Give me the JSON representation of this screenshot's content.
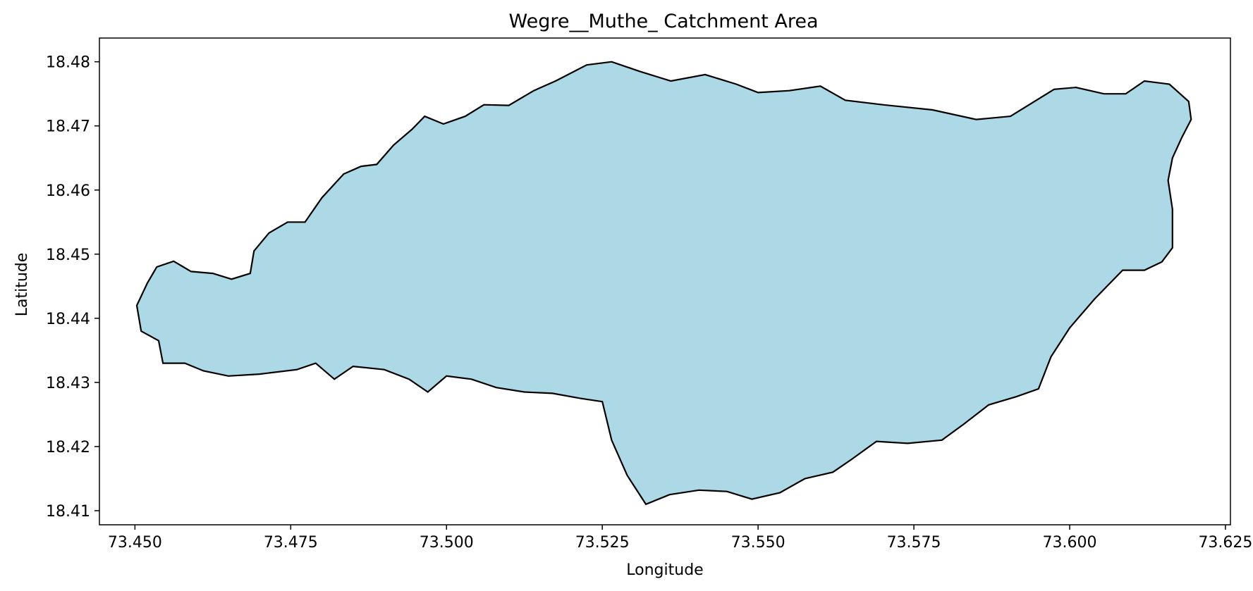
{
  "chart_data": {
    "type": "map-polygon",
    "title": "Wegre__Muthe_ Catchment Area",
    "xlabel": "Longitude",
    "ylabel": "Latitude",
    "xlim": [
      73.4443,
      73.6258
    ],
    "ylim": [
      18.4078,
      18.4837
    ],
    "xticks": [
      "73.450",
      "73.475",
      "73.500",
      "73.525",
      "73.550",
      "73.575",
      "73.600",
      "73.625"
    ],
    "yticks": [
      "18.41",
      "18.42",
      "18.43",
      "18.44",
      "18.45",
      "18.46",
      "18.47",
      "18.48"
    ],
    "fill_color": "#add8e6",
    "edge_color": "#000000",
    "boundary_lon_lat": [
      [
        73.4562,
        18.4489
      ],
      [
        73.459,
        18.4473
      ],
      [
        73.4625,
        18.447
      ],
      [
        73.4655,
        18.4461
      ],
      [
        73.4685,
        18.447
      ],
      [
        73.4691,
        18.4505
      ],
      [
        73.4715,
        18.4533
      ],
      [
        73.4745,
        18.455
      ],
      [
        73.4773,
        18.455
      ],
      [
        73.48,
        18.4588
      ],
      [
        73.4835,
        18.4625
      ],
      [
        73.4863,
        18.4637
      ],
      [
        73.4888,
        18.464
      ],
      [
        73.4915,
        18.467
      ],
      [
        73.4945,
        18.4695
      ],
      [
        73.4965,
        18.4715
      ],
      [
        73.4995,
        18.4703
      ],
      [
        73.503,
        18.4715
      ],
      [
        73.506,
        18.4733
      ],
      [
        73.51,
        18.4732
      ],
      [
        73.514,
        18.4755
      ],
      [
        73.5175,
        18.477
      ],
      [
        73.5225,
        18.4795
      ],
      [
        73.5265,
        18.48
      ],
      [
        73.531,
        18.4785
      ],
      [
        73.536,
        18.477
      ],
      [
        73.5415,
        18.478
      ],
      [
        73.5465,
        18.4765
      ],
      [
        73.55,
        18.4752
      ],
      [
        73.555,
        18.4755
      ],
      [
        73.56,
        18.4762
      ],
      [
        73.564,
        18.474
      ],
      [
        73.57,
        18.4733
      ],
      [
        73.578,
        18.4725
      ],
      [
        73.585,
        18.471
      ],
      [
        73.5905,
        18.4715
      ],
      [
        73.5935,
        18.4733
      ],
      [
        73.5975,
        18.4757
      ],
      [
        73.601,
        18.476
      ],
      [
        73.6055,
        18.475
      ],
      [
        73.609,
        18.475
      ],
      [
        73.612,
        18.477
      ],
      [
        73.616,
        18.4765
      ],
      [
        73.6191,
        18.4738
      ],
      [
        73.6195,
        18.471
      ],
      [
        73.618,
        18.4682
      ],
      [
        73.6165,
        18.465
      ],
      [
        73.6158,
        18.4615
      ],
      [
        73.6165,
        18.457
      ],
      [
        73.6165,
        18.451
      ],
      [
        73.6148,
        18.4488
      ],
      [
        73.612,
        18.4475
      ],
      [
        73.6085,
        18.4475
      ],
      [
        73.604,
        18.443
      ],
      [
        73.6,
        18.4385
      ],
      [
        73.597,
        18.434
      ],
      [
        73.595,
        18.429
      ],
      [
        73.5915,
        18.4278
      ],
      [
        73.587,
        18.4265
      ],
      [
        73.583,
        18.4235
      ],
      [
        73.5795,
        18.421
      ],
      [
        73.574,
        18.4205
      ],
      [
        73.569,
        18.4208
      ],
      [
        73.565,
        18.418
      ],
      [
        73.562,
        18.416
      ],
      [
        73.5575,
        18.415
      ],
      [
        73.5535,
        18.4128
      ],
      [
        73.549,
        18.4118
      ],
      [
        73.545,
        18.413
      ],
      [
        73.5405,
        18.4132
      ],
      [
        73.5358,
        18.4125
      ],
      [
        73.532,
        18.411
      ],
      [
        73.529,
        18.4155
      ],
      [
        73.5265,
        18.421
      ],
      [
        73.525,
        18.427
      ],
      [
        73.5215,
        18.4275
      ],
      [
        73.517,
        18.4283
      ],
      [
        73.5125,
        18.4285
      ],
      [
        73.508,
        18.4292
      ],
      [
        73.504,
        18.4305
      ],
      [
        73.5,
        18.431
      ],
      [
        73.497,
        18.4285
      ],
      [
        73.494,
        18.4305
      ],
      [
        73.49,
        18.432
      ],
      [
        73.485,
        18.4325
      ],
      [
        73.482,
        18.4305
      ],
      [
        73.479,
        18.433
      ],
      [
        73.476,
        18.432
      ],
      [
        73.47,
        18.4313
      ],
      [
        73.465,
        18.431
      ],
      [
        73.461,
        18.4318
      ],
      [
        73.458,
        18.433
      ],
      [
        73.4545,
        18.433
      ],
      [
        73.4538,
        18.4365
      ],
      [
        73.451,
        18.438
      ],
      [
        73.4503,
        18.442
      ],
      [
        73.452,
        18.4455
      ],
      [
        73.4535,
        18.448
      ]
    ]
  }
}
